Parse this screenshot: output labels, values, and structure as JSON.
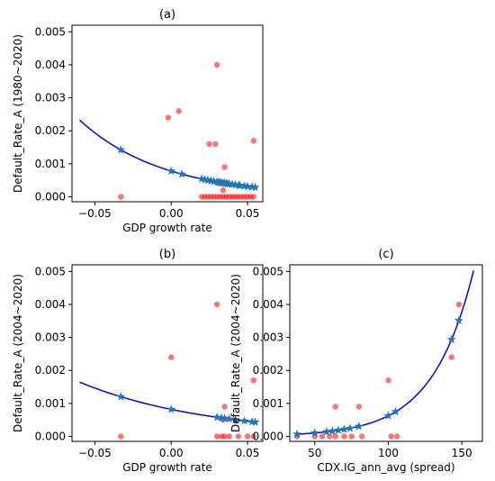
{
  "colors": {
    "curve": "#0000ff",
    "fitted_marker": "#1f77b4",
    "observed_marker": "#ff0000",
    "observed_alpha": 0.55
  },
  "chart_data": [
    {
      "id": "a",
      "type": "scatter",
      "title": "(a)",
      "xlabel": "GDP growth rate",
      "ylabel": "Default_Rate_A (1980~2020)",
      "xlim": [
        -0.065,
        0.06
      ],
      "ylim": [
        -0.00015,
        0.0052
      ],
      "xticks": [
        -0.05,
        0.0,
        0.05
      ],
      "xtick_labels": [
        "−0.05",
        "0.00",
        "0.05"
      ],
      "yticks": [
        0.0,
        0.001,
        0.002,
        0.003,
        0.004,
        0.005
      ],
      "ytick_labels": [
        "0.000",
        "0.001",
        "0.002",
        "0.003",
        "0.004",
        "0.005"
      ],
      "grid": false,
      "curve": {
        "form": "exponential",
        "a": 0.00078,
        "b": -18.2,
        "x_from": -0.06,
        "x_to": 0.056
      },
      "fitted_points_x": [
        -0.033,
        0.0,
        0.007,
        0.02,
        0.022,
        0.024,
        0.026,
        0.028,
        0.03,
        0.031,
        0.032,
        0.033,
        0.034,
        0.035,
        0.036,
        0.037,
        0.038,
        0.04,
        0.042,
        0.044,
        0.045,
        0.048,
        0.05,
        0.053,
        0.055
      ],
      "observed": [
        {
          "x": -0.033,
          "y": 0.0
        },
        {
          "x": -0.002,
          "y": 0.0024
        },
        {
          "x": 0.005,
          "y": 0.0026
        },
        {
          "x": 0.025,
          "y": 0.0016
        },
        {
          "x": 0.029,
          "y": 0.0016
        },
        {
          "x": 0.03,
          "y": 0.004
        },
        {
          "x": 0.035,
          "y": 0.0009
        },
        {
          "x": 0.054,
          "y": 0.0017
        },
        {
          "x": 0.034,
          "y": 0.0002
        },
        {
          "x": 0.02,
          "y": 0.0
        },
        {
          "x": 0.022,
          "y": 0.0
        },
        {
          "x": 0.024,
          "y": 0.0
        },
        {
          "x": 0.026,
          "y": 0.0
        },
        {
          "x": 0.028,
          "y": 0.0
        },
        {
          "x": 0.03,
          "y": 0.0
        },
        {
          "x": 0.032,
          "y": 0.0
        },
        {
          "x": 0.034,
          "y": 0.0
        },
        {
          "x": 0.036,
          "y": 0.0
        },
        {
          "x": 0.038,
          "y": 0.0
        },
        {
          "x": 0.04,
          "y": 0.0
        },
        {
          "x": 0.042,
          "y": 0.0
        },
        {
          "x": 0.044,
          "y": 0.0
        },
        {
          "x": 0.046,
          "y": 0.0
        },
        {
          "x": 0.048,
          "y": 0.0
        },
        {
          "x": 0.05,
          "y": 0.0
        },
        {
          "x": 0.052,
          "y": 0.0
        },
        {
          "x": 0.054,
          "y": 0.0
        }
      ]
    },
    {
      "id": "b",
      "type": "scatter",
      "title": "(b)",
      "xlabel": "GDP growth rate",
      "ylabel": "Default_Rate_A (2004~2020)",
      "xlim": [
        -0.065,
        0.06
      ],
      "ylim": [
        -0.00015,
        0.0052
      ],
      "xticks": [
        -0.05,
        0.0,
        0.05
      ],
      "xtick_labels": [
        "−0.05",
        "0.00",
        "0.05"
      ],
      "yticks": [
        0.0,
        0.001,
        0.002,
        0.003,
        0.004,
        0.005
      ],
      "ytick_labels": [
        "0.000",
        "0.001",
        "0.002",
        "0.003",
        "0.004",
        "0.005"
      ],
      "grid": false,
      "curve": {
        "form": "exponential",
        "a": 0.00082,
        "b": -11.6,
        "x_from": -0.06,
        "x_to": 0.056
      },
      "fitted_points_x": [
        -0.033,
        0.0,
        0.03,
        0.033,
        0.035,
        0.038,
        0.042,
        0.048,
        0.053,
        0.055
      ],
      "observed": [
        {
          "x": -0.033,
          "y": 0.0
        },
        {
          "x": 0.0,
          "y": 0.0024
        },
        {
          "x": 0.03,
          "y": 0.004
        },
        {
          "x": 0.035,
          "y": 0.0009
        },
        {
          "x": 0.034,
          "y": 0.0005
        },
        {
          "x": 0.054,
          "y": 0.0017
        },
        {
          "x": 0.03,
          "y": 0.0
        },
        {
          "x": 0.033,
          "y": 0.0
        },
        {
          "x": 0.035,
          "y": 0.0
        },
        {
          "x": 0.038,
          "y": 0.0
        },
        {
          "x": 0.044,
          "y": 0.0
        },
        {
          "x": 0.05,
          "y": 0.0
        },
        {
          "x": 0.054,
          "y": 0.0
        }
      ]
    },
    {
      "id": "c",
      "type": "scatter",
      "title": "(c)",
      "xlabel": "CDX.IG_ann_avg (spread)",
      "ylabel": "Default_Rate_A (2004~2020)",
      "xlim": [
        33,
        164
      ],
      "ylim": [
        -0.00015,
        0.0052
      ],
      "xticks": [
        50,
        100,
        150
      ],
      "xtick_labels": [
        "50",
        "100",
        "150"
      ],
      "yticks": [
        0.0,
        0.001,
        0.002,
        0.003,
        0.004,
        0.005
      ],
      "ytick_labels": [
        "0.000",
        "0.001",
        "0.002",
        "0.003",
        "0.004",
        "0.005"
      ],
      "grid": false,
      "curve": {
        "form": "exponential",
        "a": 1.73e-05,
        "b": 0.0359,
        "x_from": 38,
        "x_to": 158
      },
      "fitted_points_x": [
        38,
        50,
        58,
        62,
        66,
        70,
        74,
        80,
        100,
        105,
        143,
        148
      ],
      "observed": [
        {
          "x": 38,
          "y": 0.0
        },
        {
          "x": 50,
          "y": 0.0
        },
        {
          "x": 55,
          "y": 0.0
        },
        {
          "x": 60,
          "y": 0.0
        },
        {
          "x": 64,
          "y": 0.0
        },
        {
          "x": 70,
          "y": 0.0
        },
        {
          "x": 75,
          "y": 0.0
        },
        {
          "x": 82,
          "y": 0.0
        },
        {
          "x": 102,
          "y": 0.0
        },
        {
          "x": 106,
          "y": 0.0
        },
        {
          "x": 64,
          "y": 0.0009
        },
        {
          "x": 80,
          "y": 0.0009
        },
        {
          "x": 100,
          "y": 0.0017
        },
        {
          "x": 143,
          "y": 0.0024
        },
        {
          "x": 148,
          "y": 0.004
        }
      ]
    }
  ]
}
